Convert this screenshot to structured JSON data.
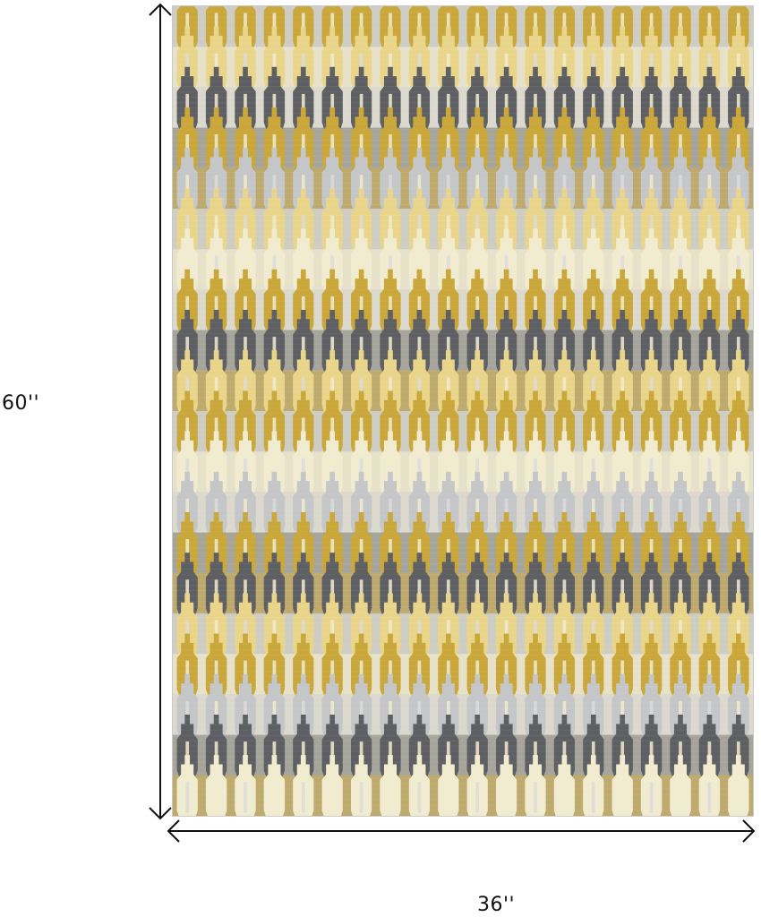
{
  "product": {
    "height_label": "60''",
    "width_label": "36''"
  },
  "palette": {
    "gold": "#c9a73a",
    "gold_dark": "#a8862a",
    "butter": "#e9d58a",
    "cream": "#f1ebcf",
    "silver": "#c4c6c8",
    "light_gray": "#dcdcd8",
    "charcoal": "#5e5f63",
    "slate": "#7b7d80",
    "base": "#d9d4bf"
  },
  "pattern": {
    "columns": 20,
    "bands": [
      "gold",
      "butter",
      "charcoal",
      "gold",
      "silver",
      "butter",
      "cream",
      "gold",
      "charcoal",
      "butter",
      "gold",
      "cream",
      "silver",
      "gold",
      "charcoal",
      "butter",
      "gold",
      "silver",
      "charcoal",
      "cream"
    ]
  }
}
